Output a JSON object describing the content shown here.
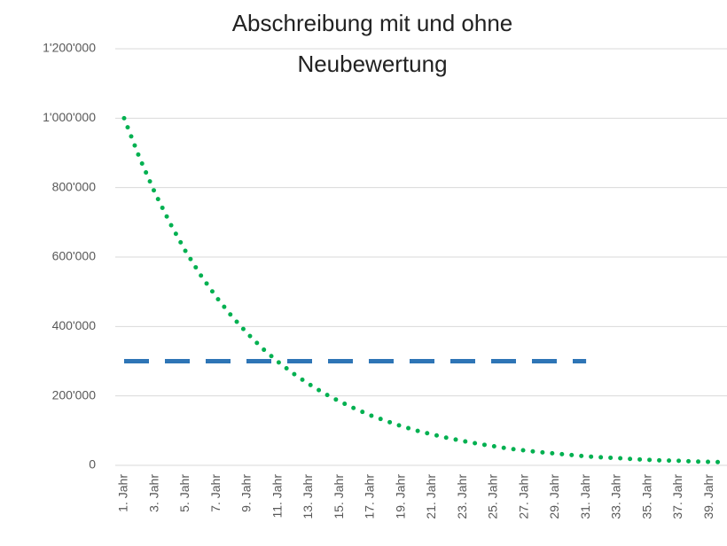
{
  "chart_data": {
    "type": "line",
    "title": [
      "Abschreibung mit und ohne",
      "Neubewertung"
    ],
    "categories": [
      "1. Jahr",
      null,
      "3. Jahr",
      null,
      "5. Jahr",
      null,
      "7. Jahr",
      null,
      "9. Jahr",
      null,
      "11. Jahr",
      null,
      "13. Jahr",
      null,
      "15. Jahr",
      null,
      "17. Jahr",
      null,
      "19. Jahr",
      null,
      "21. Jahr",
      null,
      "23. Jahr",
      null,
      "25. Jahr",
      null,
      "27. Jahr",
      null,
      "29. Jahr",
      null,
      "31. Jahr",
      null,
      "33. Jahr",
      null,
      "35. Jahr",
      null,
      "37. Jahr",
      null,
      "39. Jahr",
      null
    ],
    "series": [
      {
        "color": "#00b050",
        "style": "dotted",
        "values": [
          1000000,
          886000,
          785000,
          696000,
          616000,
          546000,
          484000,
          429000,
          380000,
          336000,
          298000,
          264000,
          234000,
          207000,
          184000,
          163000,
          144000,
          128000,
          113000,
          100000,
          89000,
          79000,
          70000,
          62000,
          55000,
          48000,
          43000,
          38000,
          34000,
          30000,
          26000,
          23000,
          21000,
          18000,
          16000,
          14000,
          13000,
          11000,
          10000,
          9000
        ]
      },
      {
        "color": "#2e75b6",
        "style": "dashed",
        "values": [
          300000,
          300000,
          300000,
          300000,
          300000,
          300000,
          300000,
          300000,
          300000,
          300000,
          300000,
          300000,
          300000,
          300000,
          300000,
          300000,
          300000,
          300000,
          300000,
          300000,
          300000,
          300000,
          300000,
          300000,
          300000,
          300000,
          300000,
          300000,
          300000,
          300000,
          300000,
          null,
          null,
          null,
          null,
          null,
          null,
          null,
          null,
          null
        ]
      }
    ],
    "ylim": [
      0,
      1200000
    ],
    "yticks": [
      0,
      {
        "value": 200000,
        "label": "200'000"
      },
      {
        "value": 400000,
        "label": "400'000"
      },
      {
        "value": 600000,
        "label": "600'000"
      },
      {
        "value": 800000,
        "label": "800'000"
      },
      {
        "value": 1000000,
        "label": "1'000'000"
      },
      {
        "value": 1200000,
        "label": "1'200'000"
      }
    ],
    "grid": true
  }
}
